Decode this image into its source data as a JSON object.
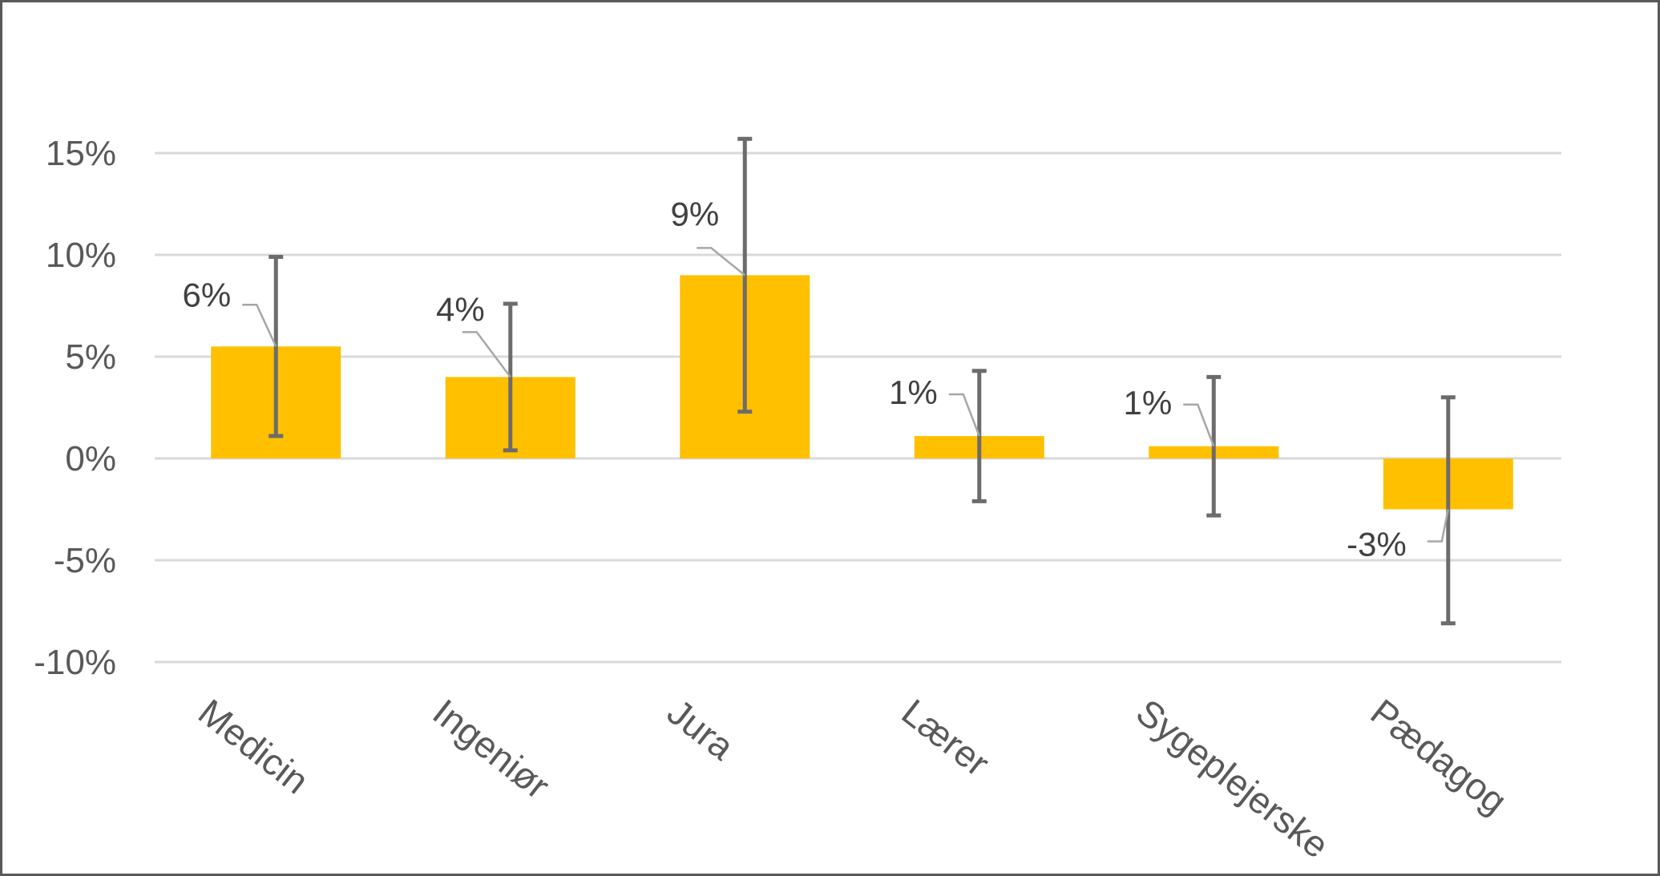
{
  "colors": {
    "bar": "#FFC000",
    "error_bar": "#6E6B6B",
    "gridline": "#D9D9D9",
    "zero_line": "#D9D9D9",
    "leader_line": "#A6A6A6",
    "axis_text": "#595959",
    "data_label_text": "#404040",
    "frame_border": "#595959"
  },
  "chart_data": {
    "type": "bar",
    "title": "",
    "xlabel": "",
    "ylabel": "",
    "ylim": [
      -10,
      15
    ],
    "y_ticks": [
      15,
      10,
      5,
      0,
      -5,
      -10
    ],
    "y_tick_labels": [
      "15%",
      "10%",
      "5%",
      "0%",
      "-5%",
      "-10%"
    ],
    "grid": true,
    "legend": "none",
    "categories": [
      "Medicin",
      "Ingeniør",
      "Jura",
      "Lærer",
      "Sygeplejerske",
      "Pædagog"
    ],
    "values": [
      5.5,
      4.0,
      9.0,
      1.1,
      0.6,
      -2.5
    ],
    "error_low": [
      1.1,
      0.4,
      2.3,
      -2.1,
      -2.8,
      -8.1
    ],
    "error_high": [
      9.9,
      7.6,
      15.7,
      4.3,
      4.0,
      3.0
    ],
    "data_labels": [
      "6%",
      "4%",
      "9%",
      "1%",
      "1%",
      "-3%"
    ]
  }
}
